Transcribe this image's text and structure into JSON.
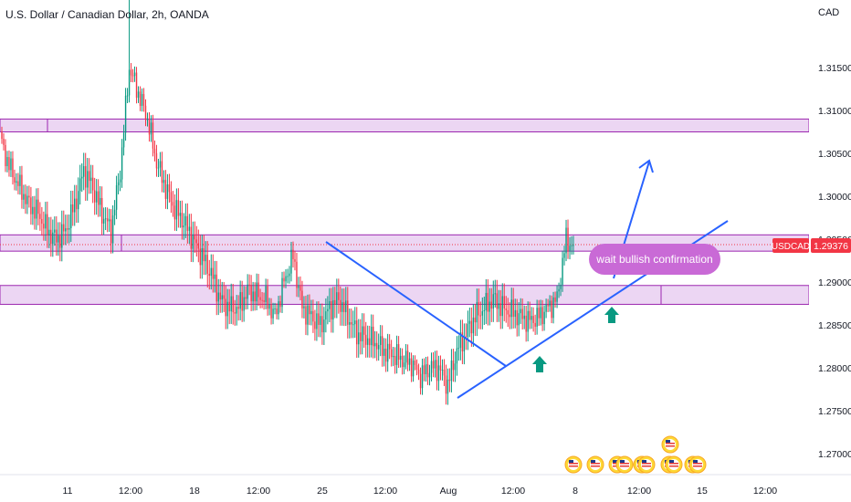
{
  "header": {
    "title": "U.S. Dollar / Canadian Dollar, 2h, OANDA"
  },
  "currency": "CAD",
  "price_tag": {
    "symbol": "USDCAD",
    "value": "1.29376",
    "color": "#f23645"
  },
  "annotation": {
    "text": "wait bullish confirmation",
    "color": "#c96ad6"
  },
  "colors": {
    "up": "#089981",
    "down": "#f23645",
    "zone_fill": "#e6c8ef",
    "zone_border": "#9c27b0",
    "trendline": "#2962ff",
    "arrow": "#089981"
  },
  "chart_data": {
    "type": "candlestick",
    "instrument": "USDCAD",
    "ylim": [
      1.265,
      1.323
    ],
    "y_ticks": [
      "1.27000",
      "1.27500",
      "1.28000",
      "1.28500",
      "1.29000",
      "1.29500",
      "1.30000",
      "1.30500",
      "1.31000",
      "1.31500"
    ],
    "x_ticks": [
      "11",
      "12:00",
      "18",
      "12:00",
      "25",
      "12:00",
      "Aug",
      "12:00",
      "8",
      "12:00",
      "15",
      "12:00"
    ],
    "zones": [
      {
        "from": 1.3075,
        "to": 1.309
      },
      {
        "from": 1.2936,
        "to": 1.2955
      },
      {
        "from": 1.2874,
        "to": 1.2896
      }
    ],
    "last_price": 1.29376,
    "anchors": [
      [
        0,
        1.306
      ],
      [
        5,
        1.303
      ],
      [
        10,
        1.301
      ],
      [
        15,
        1.299
      ],
      [
        20,
        1.298
      ],
      [
        25,
        1.296
      ],
      [
        30,
        1.295
      ],
      [
        35,
        1.296
      ],
      [
        40,
        1.299
      ],
      [
        45,
        1.303
      ],
      [
        50,
        1.301
      ],
      [
        55,
        1.298
      ],
      [
        60,
        1.296
      ],
      [
        65,
        1.303
      ],
      [
        70,
        1.315
      ],
      [
        75,
        1.312
      ],
      [
        80,
        1.309
      ],
      [
        85,
        1.304
      ],
      [
        90,
        1.301
      ],
      [
        95,
        1.2985
      ],
      [
        100,
        1.297
      ],
      [
        105,
        1.295
      ],
      [
        110,
        1.293
      ],
      [
        115,
        1.291
      ],
      [
        120,
        1.288
      ],
      [
        125,
        1.287
      ],
      [
        130,
        1.287
      ],
      [
        135,
        1.289
      ],
      [
        140,
        1.2885
      ],
      [
        145,
        1.288
      ],
      [
        150,
        1.286
      ],
      [
        155,
        1.29
      ],
      [
        160,
        1.293
      ],
      [
        165,
        1.287
      ],
      [
        170,
        1.286
      ],
      [
        175,
        1.285
      ],
      [
        180,
        1.287
      ],
      [
        185,
        1.288
      ],
      [
        190,
        1.286
      ],
      [
        195,
        1.284
      ],
      [
        200,
        1.2835
      ],
      [
        205,
        1.283
      ],
      [
        210,
        1.282
      ],
      [
        215,
        1.2815
      ],
      [
        220,
        1.281
      ],
      [
        225,
        1.2805
      ],
      [
        230,
        1.279
      ],
      [
        235,
        1.28
      ],
      [
        240,
        1.28
      ],
      [
        245,
        1.278
      ],
      [
        250,
        1.282
      ],
      [
        255,
        1.284
      ],
      [
        260,
        1.286
      ],
      [
        265,
        1.287
      ],
      [
        270,
        1.288
      ],
      [
        275,
        1.287
      ],
      [
        280,
        1.2865
      ],
      [
        285,
        1.286
      ],
      [
        290,
        1.2855
      ],
      [
        295,
        1.286
      ],
      [
        300,
        1.287
      ],
      [
        305,
        1.288
      ],
      [
        310,
        1.295
      ],
      [
        314,
        1.294
      ]
    ]
  }
}
